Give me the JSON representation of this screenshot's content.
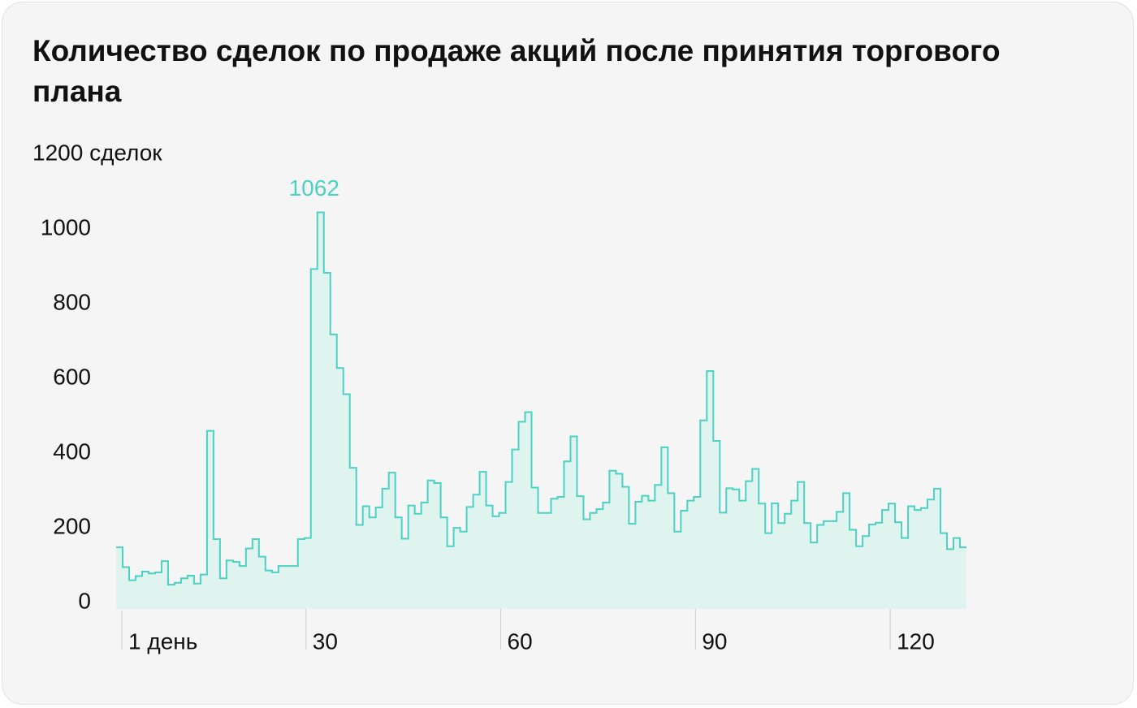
{
  "colors": {
    "accent": "#4cd1c2",
    "fill": "#dff3ef",
    "guide": "#cccccc"
  },
  "chart_data": {
    "type": "area",
    "title": "Количество сделок по продаже акций после принятия торгового плана",
    "ylabel": "",
    "ylim": [
      0,
      1200
    ],
    "y_ticks": [
      {
        "value": 0,
        "label": "0"
      },
      {
        "value": 200,
        "label": "200"
      },
      {
        "value": 400,
        "label": "400"
      },
      {
        "value": 600,
        "label": "600"
      },
      {
        "value": 800,
        "label": "800"
      },
      {
        "value": 1000,
        "label": "1000"
      },
      {
        "value": 1200,
        "label": "1200 сделок"
      }
    ],
    "x_ticks": [
      {
        "value": 1,
        "label": "1 день"
      },
      {
        "value": 30,
        "label": "30"
      },
      {
        "value": 60,
        "label": "60"
      },
      {
        "value": 90,
        "label": "90"
      },
      {
        "value": 120,
        "label": "120"
      }
    ],
    "xlim": [
      0,
      131
    ],
    "annotations": [
      {
        "x": 31,
        "y": 1062,
        "label": "1062"
      }
    ],
    "values": [
      165,
      112,
      77,
      88,
      100,
      95,
      98,
      128,
      65,
      70,
      82,
      89,
      68,
      92,
      477,
      187,
      82,
      130,
      126,
      115,
      162,
      187,
      140,
      103,
      98,
      115,
      115,
      115,
      187,
      190,
      910,
      1062,
      900,
      735,
      645,
      575,
      378,
      225,
      275,
      245,
      272,
      322,
      365,
      245,
      188,
      277,
      255,
      285,
      344,
      337,
      245,
      168,
      217,
      207,
      273,
      306,
      367,
      277,
      248,
      257,
      340,
      427,
      501,
      527,
      325,
      257,
      257,
      295,
      300,
      395,
      462,
      302,
      240,
      257,
      267,
      285,
      370,
      362,
      327,
      228,
      287,
      303,
      290,
      332,
      433,
      310,
      207,
      263,
      290,
      300,
      505,
      637,
      450,
      258,
      323,
      320,
      290,
      342,
      375,
      282,
      203,
      283,
      230,
      255,
      290,
      340,
      230,
      178,
      225,
      235,
      235,
      260,
      310,
      212,
      168,
      195,
      226,
      231,
      265,
      282,
      232,
      190,
      275,
      265,
      270,
      293,
      322,
      203,
      160,
      190,
      165
    ]
  }
}
